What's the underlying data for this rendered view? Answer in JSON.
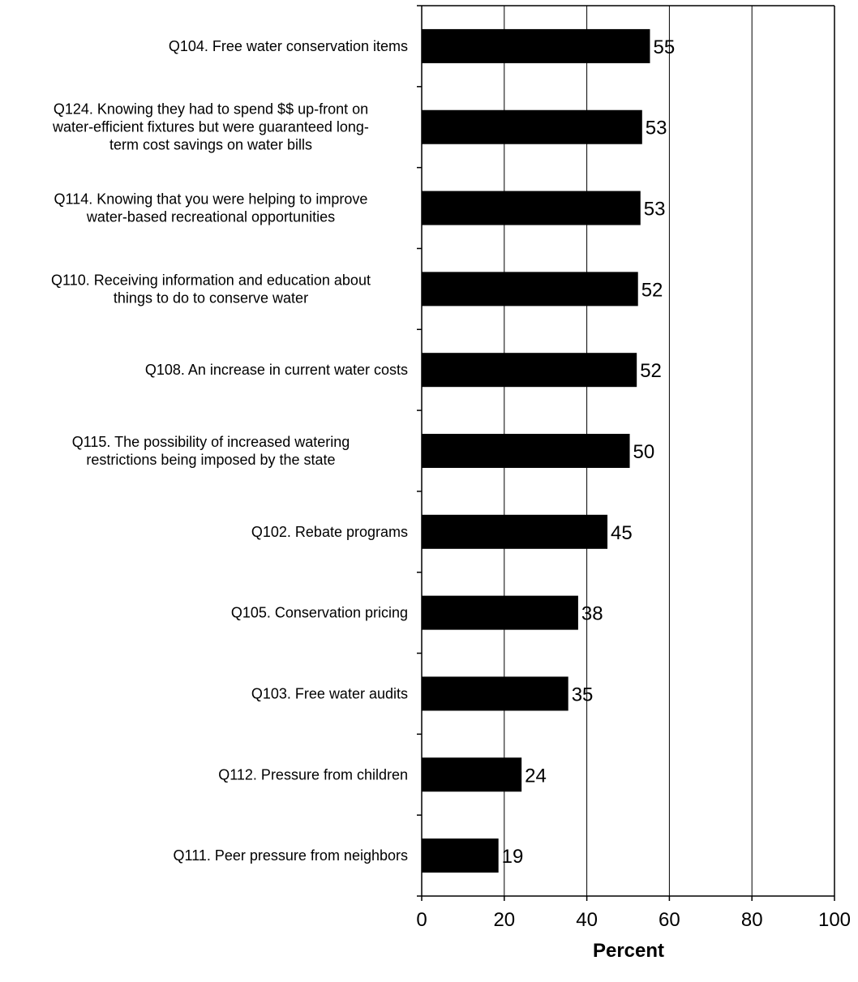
{
  "chart_data": {
    "type": "bar",
    "orientation": "horizontal",
    "xlabel": "Percent",
    "xlim": [
      0,
      100
    ],
    "xticks": [
      0,
      20,
      40,
      60,
      80,
      100
    ],
    "grid": "vertical",
    "categories": [
      [
        "Q104. Free water conservation items"
      ],
      [
        "Q124. Knowing they had to spend $$ up-front on",
        "water-efficient fixtures but were guaranteed long-",
        "term cost savings on water bills"
      ],
      [
        "Q114. Knowing that you were helping to improve",
        "water-based recreational opportunities"
      ],
      [
        "Q110. Receiving information and education about",
        "things to do to conserve water"
      ],
      [
        "Q108. An increase in current water costs"
      ],
      [
        "Q115. The possibility of increased watering",
        "restrictions being imposed by the state"
      ],
      [
        "Q102. Rebate programs"
      ],
      [
        "Q105. Conservation pricing"
      ],
      [
        "Q103. Free water audits"
      ],
      [
        "Q112. Pressure from children"
      ],
      [
        "Q111. Peer pressure from neighbors"
      ]
    ],
    "values": [
      55.3,
      53.4,
      53.0,
      52.4,
      52.1,
      50.4,
      45.0,
      37.9,
      35.5,
      24.2,
      18.6
    ],
    "labels": [
      "55",
      "53",
      "53",
      "52",
      "52",
      "50",
      "45",
      "38",
      "35",
      "24",
      "19"
    ],
    "bar_color": "#000000"
  }
}
